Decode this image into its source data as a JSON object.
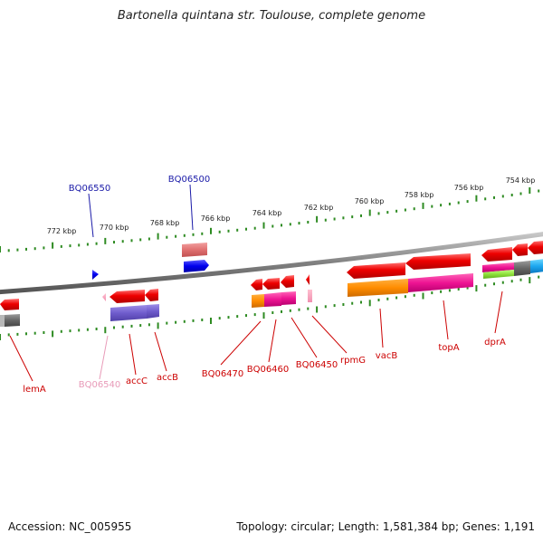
{
  "title": "Bartonella quintana str. Toulouse, complete genome",
  "footer": {
    "accession": "Accession: NC_005955",
    "topology": "Topology: circular; Length: 1,581,384 bp; Genes: 1,191"
  },
  "scale_labels": [
    "772 kbp",
    "770 kbp",
    "768 kbp",
    "766 kbp",
    "764 kbp",
    "762 kbp",
    "760 kbp",
    "758 kbp",
    "756 kbp",
    "754 kbp"
  ],
  "colors": {
    "backbone": "#8a8a8a",
    "tick": "#2e8b22",
    "label_blue": "#1a1aa8",
    "label_red": "#cc0000",
    "label_pink": "#e89ab8"
  },
  "labels": [
    {
      "name": "BQ06550",
      "color": "#1a1aa8"
    },
    {
      "name": "BQ06500",
      "color": "#1a1aa8"
    },
    {
      "name": "lemA",
      "color": "#cc0000"
    },
    {
      "name": "BQ06540",
      "color": "#e89ab8"
    },
    {
      "name": "accC",
      "color": "#cc0000"
    },
    {
      "name": "accB",
      "color": "#cc0000"
    },
    {
      "name": "BQ06470",
      "color": "#cc0000"
    },
    {
      "name": "BQ06460",
      "color": "#cc0000"
    },
    {
      "name": "BQ06450",
      "color": "#cc0000"
    },
    {
      "name": "rpmG",
      "color": "#cc0000"
    },
    {
      "name": "vacB",
      "color": "#cc0000"
    },
    {
      "name": "topA",
      "color": "#cc0000"
    },
    {
      "name": "dprA",
      "color": "#cc0000"
    }
  ]
}
